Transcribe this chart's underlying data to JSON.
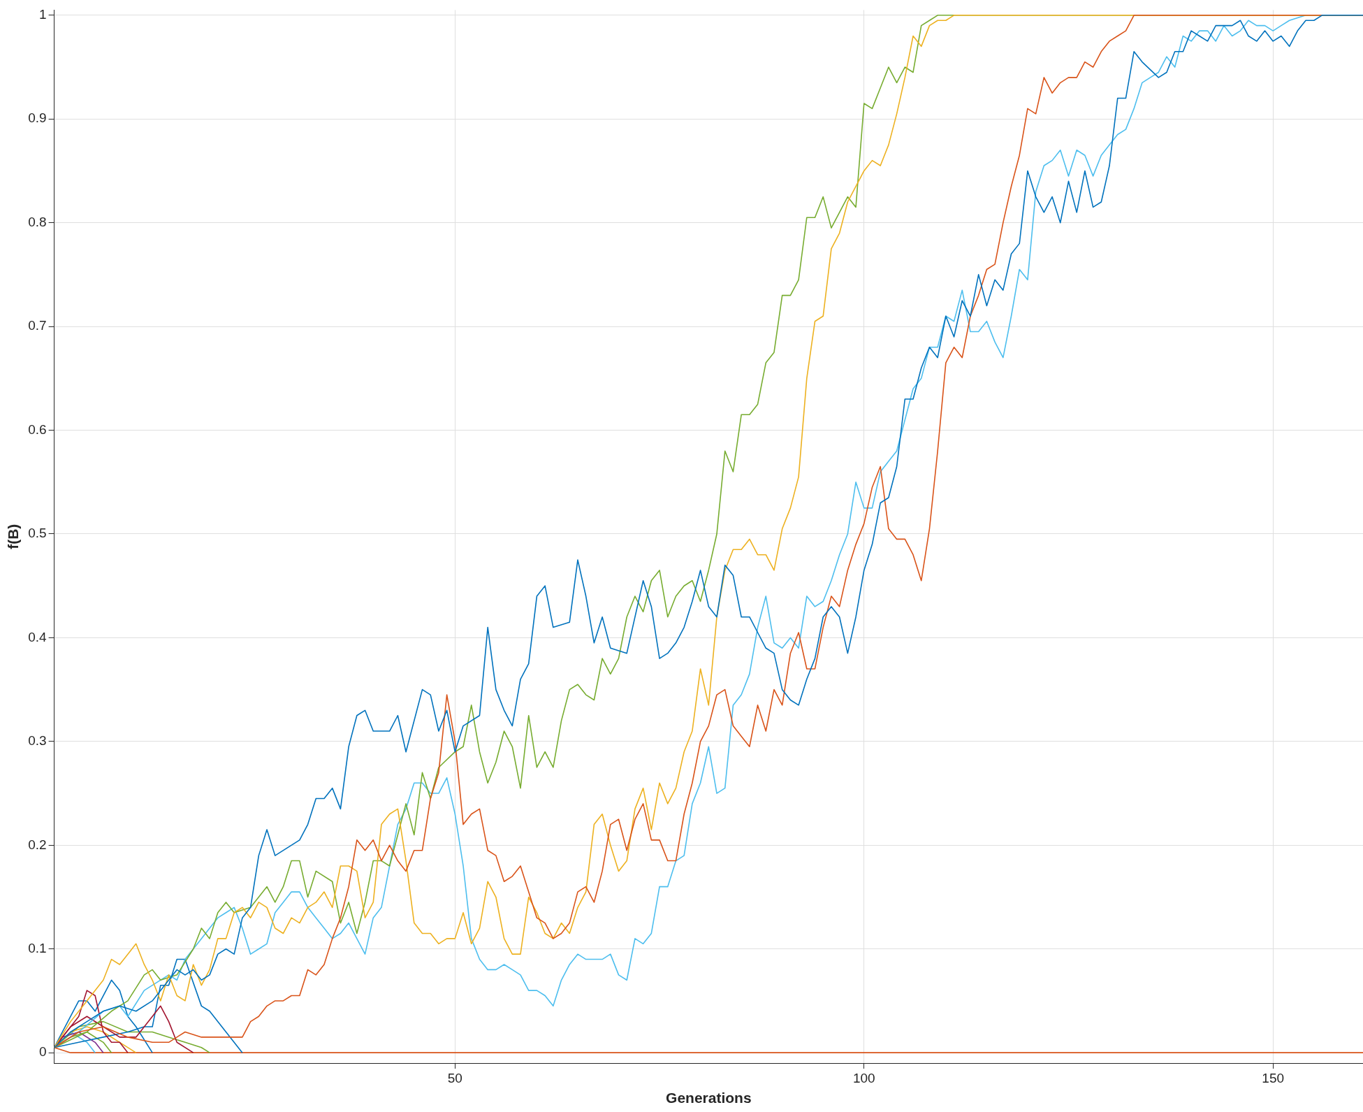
{
  "chart_data": {
    "type": "line",
    "xlabel": "Generations",
    "ylabel": "f(B)",
    "xlim": [
      1,
      161
    ],
    "ylim": [
      -0.01,
      1.005
    ],
    "xticks": [
      50,
      100,
      150
    ],
    "yticks": [
      0,
      0.1,
      0.2,
      0.3,
      0.4,
      0.5,
      0.6,
      0.7,
      0.8,
      0.9,
      1
    ],
    "grid": true,
    "legend": false,
    "marker": "none",
    "line_style": "solid",
    "series": [
      {
        "color": "#0072bd",
        "x": [
          1,
          3,
          5,
          7,
          9,
          11,
          13,
          15,
          16,
          17,
          18,
          19,
          20,
          21,
          22,
          23,
          24,
          25,
          26,
          27,
          28,
          31,
          32,
          33,
          34,
          35,
          36,
          37,
          38,
          39,
          40,
          42,
          43,
          44,
          46,
          47,
          48,
          49,
          50,
          51,
          53,
          54,
          55,
          56,
          57,
          58,
          59,
          60,
          61,
          62,
          64,
          65,
          66,
          67,
          68,
          69,
          71,
          73,
          74,
          75,
          76,
          77,
          78,
          79,
          80,
          81,
          82,
          83,
          84,
          85,
          86,
          87,
          88,
          89,
          90,
          91,
          92,
          93,
          94,
          95,
          96,
          97,
          98,
          99,
          100,
          101,
          102,
          103,
          104,
          105,
          106,
          107,
          108,
          109,
          110,
          111,
          112,
          113,
          114,
          115,
          116,
          117,
          118,
          119,
          120,
          121,
          122,
          123,
          124,
          125,
          126,
          127,
          128,
          129,
          130,
          131,
          132,
          133,
          134,
          136,
          137,
          138,
          139,
          140,
          141,
          142,
          143,
          145,
          146,
          147,
          148,
          149,
          150,
          151,
          152,
          153,
          154,
          155,
          156,
          161
        ],
        "values": [
          0.005,
          0.02,
          0.03,
          0.04,
          0.045,
          0.04,
          0.05,
          0.07,
          0.08,
          0.075,
          0.08,
          0.07,
          0.075,
          0.095,
          0.1,
          0.095,
          0.13,
          0.14,
          0.19,
          0.215,
          0.19,
          0.205,
          0.22,
          0.245,
          0.245,
          0.255,
          0.235,
          0.295,
          0.325,
          0.33,
          0.31,
          0.31,
          0.325,
          0.29,
          0.35,
          0.345,
          0.31,
          0.33,
          0.29,
          0.315,
          0.325,
          0.41,
          0.35,
          0.33,
          0.315,
          0.36,
          0.375,
          0.44,
          0.45,
          0.41,
          0.415,
          0.475,
          0.44,
          0.395,
          0.42,
          0.39,
          0.385,
          0.455,
          0.43,
          0.38,
          0.385,
          0.395,
          0.41,
          0.435,
          0.465,
          0.43,
          0.42,
          0.47,
          0.46,
          0.42,
          0.42,
          0.405,
          0.39,
          0.385,
          0.35,
          0.34,
          0.335,
          0.36,
          0.38,
          0.42,
          0.43,
          0.42,
          0.385,
          0.42,
          0.465,
          0.49,
          0.53,
          0.535,
          0.565,
          0.63,
          0.63,
          0.66,
          0.68,
          0.67,
          0.71,
          0.69,
          0.725,
          0.71,
          0.75,
          0.72,
          0.745,
          0.735,
          0.77,
          0.78,
          0.85,
          0.825,
          0.81,
          0.825,
          0.8,
          0.84,
          0.81,
          0.85,
          0.815,
          0.82,
          0.855,
          0.92,
          0.92,
          0.965,
          0.955,
          0.94,
          0.945,
          0.965,
          0.965,
          0.985,
          0.98,
          0.975,
          0.99,
          0.99,
          0.995,
          0.98,
          0.975,
          0.985,
          0.975,
          0.98,
          0.97,
          0.985,
          0.995,
          0.995,
          1,
          1
        ]
      },
      {
        "color": "#d95319",
        "x": [
          1,
          4,
          7,
          10,
          13,
          15,
          17,
          19,
          21,
          22,
          23,
          24,
          25,
          26,
          27,
          28,
          29,
          30,
          31,
          32,
          33,
          34,
          35,
          36,
          37,
          38,
          39,
          40,
          41,
          42,
          43,
          44,
          45,
          46,
          47,
          48,
          49,
          50,
          51,
          52,
          53,
          54,
          55,
          56,
          57,
          58,
          59,
          60,
          61,
          62,
          63,
          64,
          65,
          66,
          67,
          68,
          69,
          70,
          71,
          72,
          73,
          74,
          75,
          76,
          77,
          78,
          79,
          80,
          81,
          82,
          83,
          84,
          85,
          86,
          87,
          88,
          89,
          90,
          91,
          92,
          93,
          94,
          95,
          96,
          97,
          98,
          99,
          100,
          101,
          102,
          103,
          104,
          105,
          106,
          107,
          108,
          109,
          110,
          111,
          112,
          113,
          114,
          115,
          116,
          117,
          118,
          119,
          120,
          121,
          122,
          123,
          124,
          125,
          126,
          127,
          128,
          129,
          130,
          131,
          132,
          133,
          161
        ],
        "values": [
          0.005,
          0.02,
          0.025,
          0.015,
          0.01,
          0.01,
          0.02,
          0.015,
          0.015,
          0.015,
          0.015,
          0.015,
          0.03,
          0.035,
          0.045,
          0.05,
          0.05,
          0.055,
          0.055,
          0.08,
          0.075,
          0.085,
          0.11,
          0.13,
          0.16,
          0.205,
          0.195,
          0.205,
          0.185,
          0.2,
          0.185,
          0.175,
          0.195,
          0.195,
          0.245,
          0.27,
          0.345,
          0.3,
          0.22,
          0.23,
          0.235,
          0.195,
          0.19,
          0.165,
          0.17,
          0.18,
          0.155,
          0.13,
          0.125,
          0.11,
          0.115,
          0.125,
          0.155,
          0.16,
          0.145,
          0.175,
          0.22,
          0.225,
          0.195,
          0.225,
          0.24,
          0.205,
          0.205,
          0.185,
          0.185,
          0.23,
          0.26,
          0.3,
          0.315,
          0.345,
          0.35,
          0.315,
          0.305,
          0.295,
          0.335,
          0.31,
          0.35,
          0.335,
          0.385,
          0.405,
          0.37,
          0.37,
          0.41,
          0.44,
          0.43,
          0.465,
          0.49,
          0.51,
          0.545,
          0.565,
          0.505,
          0.495,
          0.495,
          0.48,
          0.455,
          0.505,
          0.58,
          0.665,
          0.68,
          0.67,
          0.71,
          0.73,
          0.755,
          0.76,
          0.8,
          0.835,
          0.865,
          0.91,
          0.905,
          0.94,
          0.925,
          0.935,
          0.94,
          0.94,
          0.955,
          0.95,
          0.965,
          0.975,
          0.98,
          0.985,
          1,
          1
        ]
      },
      {
        "color": "#edb120",
        "x": [
          1,
          3,
          5,
          7,
          8,
          9,
          10,
          11,
          12,
          13,
          14,
          15,
          16,
          17,
          18,
          19,
          20,
          21,
          22,
          23,
          24,
          25,
          26,
          27,
          28,
          29,
          30,
          31,
          32,
          33,
          34,
          35,
          36,
          37,
          38,
          39,
          40,
          41,
          42,
          43,
          44,
          45,
          46,
          47,
          48,
          49,
          50,
          51,
          52,
          53,
          54,
          55,
          56,
          57,
          58,
          59,
          60,
          61,
          62,
          63,
          64,
          65,
          66,
          67,
          68,
          69,
          70,
          71,
          72,
          73,
          74,
          75,
          76,
          77,
          78,
          79,
          80,
          81,
          82,
          83,
          84,
          85,
          86,
          87,
          88,
          89,
          90,
          91,
          92,
          93,
          94,
          95,
          96,
          97,
          98,
          99,
          100,
          101,
          102,
          103,
          104,
          105,
          106,
          107,
          108,
          109,
          110,
          111,
          161
        ],
        "values": [
          0.005,
          0.03,
          0.05,
          0.07,
          0.09,
          0.085,
          0.095,
          0.105,
          0.085,
          0.07,
          0.05,
          0.075,
          0.055,
          0.05,
          0.085,
          0.065,
          0.08,
          0.11,
          0.11,
          0.135,
          0.14,
          0.13,
          0.145,
          0.14,
          0.12,
          0.115,
          0.13,
          0.125,
          0.14,
          0.145,
          0.155,
          0.14,
          0.18,
          0.18,
          0.175,
          0.13,
          0.145,
          0.22,
          0.23,
          0.235,
          0.185,
          0.125,
          0.115,
          0.115,
          0.105,
          0.11,
          0.11,
          0.135,
          0.105,
          0.12,
          0.165,
          0.15,
          0.11,
          0.095,
          0.095,
          0.15,
          0.135,
          0.115,
          0.11,
          0.125,
          0.115,
          0.14,
          0.155,
          0.22,
          0.23,
          0.2,
          0.175,
          0.185,
          0.235,
          0.255,
          0.215,
          0.26,
          0.24,
          0.255,
          0.29,
          0.31,
          0.37,
          0.335,
          0.42,
          0.465,
          0.485,
          0.485,
          0.495,
          0.48,
          0.48,
          0.465,
          0.505,
          0.525,
          0.555,
          0.65,
          0.705,
          0.71,
          0.775,
          0.79,
          0.82,
          0.835,
          0.85,
          0.86,
          0.855,
          0.875,
          0.905,
          0.94,
          0.98,
          0.97,
          0.99,
          0.995,
          0.995,
          1,
          1
        ]
      },
      {
        "color": "#77ac30",
        "x": [
          1,
          5,
          8,
          10,
          12,
          13,
          14,
          16,
          18,
          19,
          20,
          21,
          22,
          23,
          25,
          26,
          27,
          28,
          29,
          30,
          31,
          32,
          33,
          35,
          36,
          37,
          38,
          39,
          40,
          41,
          42,
          43,
          44,
          45,
          46,
          47,
          48,
          50,
          51,
          52,
          53,
          54,
          55,
          56,
          57,
          58,
          59,
          60,
          61,
          62,
          63,
          64,
          65,
          66,
          67,
          68,
          69,
          70,
          71,
          72,
          73,
          74,
          75,
          76,
          77,
          78,
          79,
          80,
          81,
          82,
          83,
          84,
          85,
          86,
          87,
          88,
          89,
          90,
          91,
          92,
          93,
          94,
          95,
          96,
          97,
          98,
          99,
          100,
          101,
          102,
          103,
          104,
          105,
          106,
          107,
          108,
          109,
          161
        ],
        "values": [
          0.005,
          0.02,
          0.04,
          0.05,
          0.075,
          0.08,
          0.07,
          0.075,
          0.1,
          0.12,
          0.11,
          0.135,
          0.145,
          0.135,
          0.14,
          0.15,
          0.16,
          0.145,
          0.16,
          0.185,
          0.185,
          0.15,
          0.175,
          0.165,
          0.125,
          0.145,
          0.115,
          0.145,
          0.185,
          0.185,
          0.18,
          0.21,
          0.24,
          0.21,
          0.27,
          0.245,
          0.275,
          0.29,
          0.295,
          0.335,
          0.29,
          0.26,
          0.28,
          0.31,
          0.295,
          0.255,
          0.325,
          0.275,
          0.29,
          0.275,
          0.32,
          0.35,
          0.355,
          0.345,
          0.34,
          0.38,
          0.365,
          0.38,
          0.42,
          0.44,
          0.425,
          0.455,
          0.465,
          0.42,
          0.44,
          0.45,
          0.455,
          0.435,
          0.465,
          0.5,
          0.58,
          0.56,
          0.615,
          0.615,
          0.625,
          0.665,
          0.675,
          0.73,
          0.73,
          0.745,
          0.805,
          0.805,
          0.825,
          0.795,
          0.81,
          0.825,
          0.815,
          0.915,
          0.91,
          0.93,
          0.95,
          0.935,
          0.95,
          0.945,
          0.99,
          0.995,
          1,
          1
        ]
      },
      {
        "color": "#4dbeee",
        "x": [
          1,
          4,
          7,
          9,
          10,
          12,
          13,
          15,
          16,
          17,
          18,
          19,
          20,
          21,
          22,
          23,
          24,
          25,
          26,
          27,
          28,
          29,
          30,
          31,
          32,
          33,
          34,
          35,
          36,
          37,
          38,
          39,
          40,
          41,
          42,
          43,
          44,
          45,
          46,
          47,
          48,
          49,
          50,
          51,
          52,
          53,
          54,
          55,
          56,
          57,
          58,
          59,
          60,
          61,
          62,
          63,
          64,
          65,
          66,
          67,
          68,
          69,
          70,
          71,
          72,
          73,
          74,
          75,
          76,
          77,
          78,
          79,
          80,
          81,
          82,
          83,
          84,
          85,
          86,
          87,
          88,
          89,
          90,
          91,
          92,
          93,
          94,
          95,
          96,
          97,
          98,
          99,
          100,
          101,
          102,
          103,
          104,
          105,
          106,
          107,
          108,
          109,
          110,
          111,
          112,
          113,
          114,
          115,
          116,
          117,
          118,
          119,
          120,
          121,
          122,
          123,
          124,
          125,
          126,
          127,
          128,
          129,
          130,
          131,
          132,
          133,
          134,
          135,
          136,
          137,
          138,
          139,
          140,
          141,
          142,
          143,
          144,
          145,
          146,
          147,
          148,
          149,
          150,
          151,
          152,
          154,
          161
        ],
        "values": [
          0.005,
          0.02,
          0.04,
          0.045,
          0.035,
          0.06,
          0.065,
          0.075,
          0.07,
          0.09,
          0.1,
          0.11,
          0.12,
          0.13,
          0.135,
          0.14,
          0.12,
          0.095,
          0.1,
          0.105,
          0.135,
          0.145,
          0.155,
          0.155,
          0.14,
          0.13,
          0.12,
          0.11,
          0.115,
          0.125,
          0.11,
          0.095,
          0.13,
          0.14,
          0.18,
          0.22,
          0.235,
          0.26,
          0.26,
          0.25,
          0.25,
          0.265,
          0.23,
          0.18,
          0.11,
          0.09,
          0.08,
          0.08,
          0.085,
          0.08,
          0.075,
          0.06,
          0.06,
          0.055,
          0.045,
          0.07,
          0.085,
          0.095,
          0.09,
          0.09,
          0.09,
          0.095,
          0.075,
          0.07,
          0.11,
          0.105,
          0.115,
          0.16,
          0.16,
          0.185,
          0.19,
          0.24,
          0.26,
          0.295,
          0.25,
          0.255,
          0.335,
          0.345,
          0.365,
          0.41,
          0.44,
          0.395,
          0.39,
          0.4,
          0.39,
          0.44,
          0.43,
          0.435,
          0.455,
          0.48,
          0.5,
          0.55,
          0.525,
          0.525,
          0.56,
          0.57,
          0.58,
          0.61,
          0.64,
          0.65,
          0.68,
          0.68,
          0.71,
          0.705,
          0.735,
          0.695,
          0.695,
          0.705,
          0.685,
          0.67,
          0.71,
          0.755,
          0.745,
          0.83,
          0.855,
          0.86,
          0.87,
          0.845,
          0.87,
          0.865,
          0.845,
          0.865,
          0.875,
          0.885,
          0.89,
          0.91,
          0.935,
          0.94,
          0.945,
          0.96,
          0.95,
          0.98,
          0.975,
          0.985,
          0.985,
          0.975,
          0.99,
          0.98,
          0.985,
          0.995,
          0.99,
          0.99,
          0.985,
          0.99,
          0.995,
          1,
          1
        ]
      },
      {
        "color": "#a2142f",
        "x": [
          1,
          2,
          4,
          5,
          6,
          7,
          8,
          9,
          10
        ],
        "values": [
          0.005,
          0.015,
          0.035,
          0.06,
          0.055,
          0.02,
          0.01,
          0.01,
          0
        ]
      },
      {
        "color": "#a2142f",
        "x": [
          1,
          3,
          5,
          7,
          9,
          11,
          13,
          14,
          15,
          16,
          18
        ],
        "values": [
          0.005,
          0.025,
          0.035,
          0.025,
          0.015,
          0.015,
          0.035,
          0.045,
          0.03,
          0.01,
          0
        ]
      },
      {
        "color": "#0072bd",
        "x": [
          1,
          3,
          4,
          5,
          6,
          7,
          8,
          9,
          10,
          11,
          13
        ],
        "values": [
          0.005,
          0.035,
          0.05,
          0.05,
          0.04,
          0.055,
          0.07,
          0.06,
          0.035,
          0.025,
          0
        ]
      },
      {
        "color": "#0072bd",
        "x": [
          1,
          4,
          7,
          10,
          12,
          13,
          14,
          15,
          16,
          17,
          19,
          20,
          24
        ],
        "values": [
          0.005,
          0.01,
          0.015,
          0.02,
          0.025,
          0.025,
          0.065,
          0.065,
          0.09,
          0.09,
          0.045,
          0.04,
          0
        ]
      },
      {
        "color": "#77ac30",
        "x": [
          1,
          3,
          5,
          7,
          8
        ],
        "values": [
          0.005,
          0.015,
          0.02,
          0.01,
          0
        ]
      },
      {
        "color": "#7e2f8e",
        "x": [
          1,
          2,
          4,
          6,
          7
        ],
        "values": [
          0.005,
          0.015,
          0.02,
          0.01,
          0
        ]
      },
      {
        "color": "#edb120",
        "x": [
          1,
          3,
          5,
          7,
          9,
          11
        ],
        "values": [
          0.005,
          0.02,
          0.025,
          0.02,
          0.01,
          0
        ]
      },
      {
        "color": "#4dbeee",
        "x": [
          1,
          3,
          5,
          6
        ],
        "values": [
          0.005,
          0.02,
          0.01,
          0
        ]
      },
      {
        "color": "#77ac30",
        "x": [
          1,
          4,
          7,
          10,
          13,
          15,
          17,
          19,
          20
        ],
        "values": [
          0.005,
          0.025,
          0.03,
          0.02,
          0.02,
          0.015,
          0.01,
          0.005,
          0
        ]
      },
      {
        "color": "#d95319",
        "x": [
          1,
          3,
          161
        ],
        "values": [
          0.005,
          0,
          0
        ]
      }
    ]
  }
}
